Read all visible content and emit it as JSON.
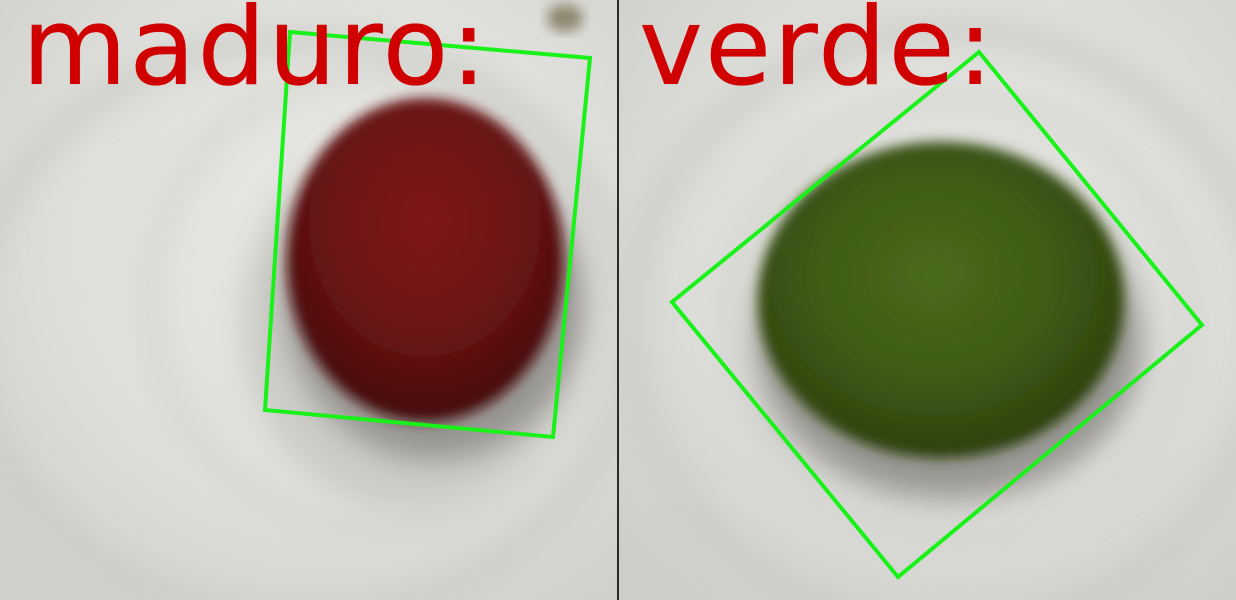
{
  "panels": [
    {
      "id": "ripe",
      "label": "maduro:",
      "fruit_color": "#6e1212",
      "box_color": "#19f219",
      "label_color": "#d10000"
    },
    {
      "id": "green",
      "label": "verde:",
      "fruit_color": "#3e5a14",
      "box_color": "#19f219",
      "label_color": "#d10000"
    }
  ]
}
